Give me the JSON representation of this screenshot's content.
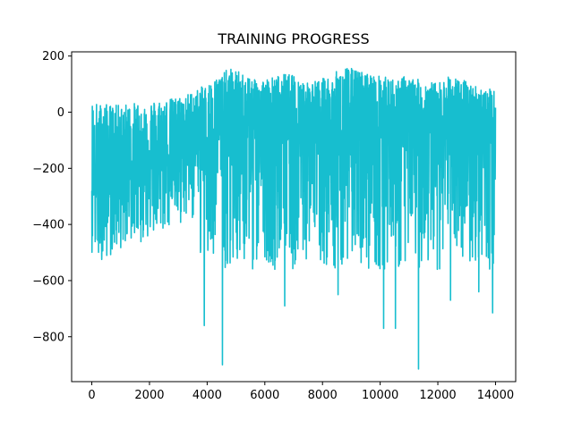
{
  "chart_data": {
    "type": "line",
    "title": "TRAINING PROGRESS",
    "xlabel": "",
    "ylabel": "",
    "xlim": [
      -700,
      14700
    ],
    "ylim": [
      -960,
      215
    ],
    "x_ticks": [
      0,
      2000,
      4000,
      6000,
      8000,
      10000,
      12000,
      14000
    ],
    "y_ticks": [
      200,
      0,
      -200,
      -400,
      -600,
      -800
    ],
    "grid": false,
    "legend": "none",
    "series": [
      {
        "color": "#17becf",
        "x": [
          0,
          400,
          800,
          1200,
          1600,
          2000,
          2400,
          2800,
          3200,
          3600,
          4000,
          4400,
          4800,
          5200,
          5600,
          6000,
          6400,
          6800,
          7200,
          7600,
          8000,
          8400,
          8800,
          9200,
          9600,
          10000,
          10400,
          10800,
          11200,
          11600,
          12000,
          12400,
          12800,
          13200,
          13600,
          14000
        ],
        "mean": [
          -220,
          -200,
          -190,
          -180,
          -170,
          -160,
          -150,
          -140,
          -120,
          -110,
          -90,
          -70,
          -60,
          -60,
          -70,
          -65,
          -60,
          -70,
          -60,
          -55,
          -60,
          -65,
          -60,
          -55,
          -60,
          -65,
          -70,
          -65,
          -60,
          -60,
          -65,
          -70,
          -75,
          -70,
          -90,
          -110
        ],
        "upper": [
          40,
          30,
          25,
          30,
          35,
          40,
          45,
          50,
          60,
          80,
          100,
          130,
          160,
          140,
          130,
          120,
          130,
          140,
          120,
          110,
          120,
          140,
          165,
          150,
          140,
          130,
          120,
          130,
          120,
          110,
          105,
          130,
          120,
          100,
          90,
          75
        ],
        "lower": [
          -500,
          -530,
          -500,
          -480,
          -470,
          -450,
          -430,
          -420,
          -400,
          -380,
          -760,
          -900,
          -600,
          -580,
          -560,
          -520,
          -570,
          -690,
          -560,
          -520,
          -560,
          -650,
          -600,
          -580,
          -600,
          -620,
          -770,
          -750,
          -920,
          -650,
          -600,
          -670,
          -560,
          -580,
          -690,
          -710
        ],
        "spikes": [
          {
            "x": 3900,
            "y": -760
          },
          {
            "x": 4530,
            "y": -900
          },
          {
            "x": 6690,
            "y": -690
          },
          {
            "x": 8540,
            "y": -650
          },
          {
            "x": 10120,
            "y": -770
          },
          {
            "x": 10530,
            "y": -770
          },
          {
            "x": 11330,
            "y": -915
          },
          {
            "x": 12440,
            "y": -670
          },
          {
            "x": 13420,
            "y": -640
          },
          {
            "x": 13900,
            "y": -715
          }
        ]
      }
    ]
  }
}
